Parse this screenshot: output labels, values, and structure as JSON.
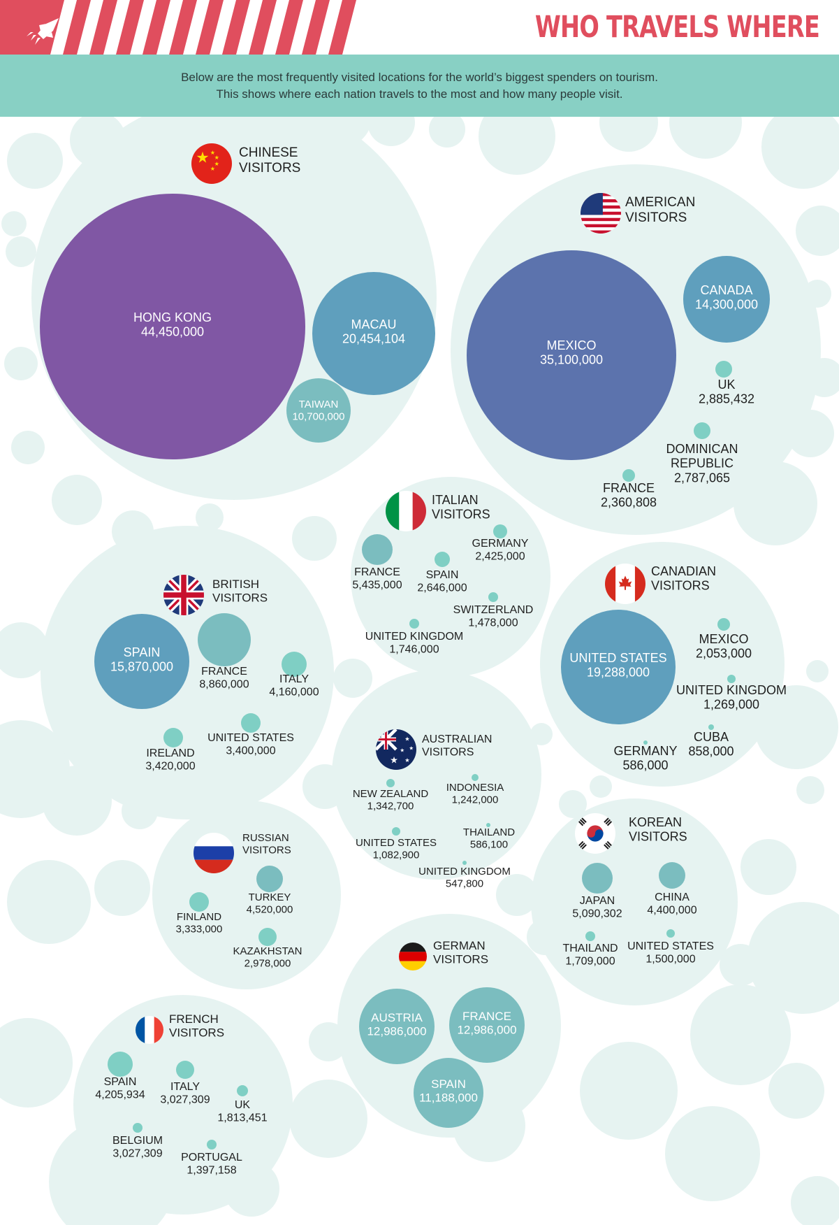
{
  "header": {
    "title": "WHO TRAVELS WHERE",
    "stripe_color": "#e04e5e",
    "logo_icon": "rocket-icon"
  },
  "intro": {
    "line1": "Below are the most frequently visited locations for the world’s biggest spenders on tourism.",
    "line2": "This shows where each nation travels to the most and how many people visit."
  },
  "colors": {
    "intro_bar": "#88d0c4",
    "group_background": "#e6f3f1",
    "hong_kong_bubble": "#8057a4",
    "mexico_bubble": "#5c73ad",
    "blue_bubbles": "#5f9fbd",
    "teal_bubbles": "#7bbdbf",
    "small_dots": "#7fcfc4"
  },
  "groups": [
    {
      "id": "chinese",
      "flag": "china-flag",
      "label": [
        "CHINESE",
        "VISITORS"
      ],
      "destinations": [
        {
          "name": "HONG KONG",
          "visitors": "44,450,000"
        },
        {
          "name": "MACAU",
          "visitors": "20,454,104"
        },
        {
          "name": "TAIWAN",
          "visitors": "10,700,000"
        }
      ]
    },
    {
      "id": "american",
      "flag": "usa-flag",
      "label": [
        "AMERICAN",
        "VISITORS"
      ],
      "destinations": [
        {
          "name": "MEXICO",
          "visitors": "35,100,000"
        },
        {
          "name": "CANADA",
          "visitors": "14,300,000"
        },
        {
          "name": "UK",
          "visitors": "2,885,432"
        },
        {
          "name": "DOMINICAN REPUBLIC",
          "visitors": "2,787,065"
        },
        {
          "name": "FRANCE",
          "visitors": "2,360,808"
        }
      ]
    },
    {
      "id": "italian",
      "flag": "italy-flag",
      "label": [
        "ITALIAN",
        "VISITORS"
      ],
      "destinations": [
        {
          "name": "FRANCE",
          "visitors": "5,435,000"
        },
        {
          "name": "GERMANY",
          "visitors": "2,425,000"
        },
        {
          "name": "SPAIN",
          "visitors": "2,646,000"
        },
        {
          "name": "SWITZERLAND",
          "visitors": "1,478,000"
        },
        {
          "name": "UNITED KINGDOM",
          "visitors": "1,746,000"
        }
      ]
    },
    {
      "id": "british",
      "flag": "uk-flag",
      "label": [
        "BRITISH",
        "VISITORS"
      ],
      "destinations": [
        {
          "name": "SPAIN",
          "visitors": "15,870,000"
        },
        {
          "name": "FRANCE",
          "visitors": "8,860,000"
        },
        {
          "name": "ITALY",
          "visitors": "4,160,000"
        },
        {
          "name": "UNITED STATES",
          "visitors": "3,400,000"
        },
        {
          "name": "IRELAND",
          "visitors": "3,420,000"
        }
      ]
    },
    {
      "id": "canadian",
      "flag": "canada-flag",
      "label": [
        "CANADIAN",
        "VISITORS"
      ],
      "destinations": [
        {
          "name": "UNITED STATES",
          "visitors": "19,288,000"
        },
        {
          "name": "MEXICO",
          "visitors": "2,053,000"
        },
        {
          "name": "UNITED KINGDOM",
          "visitors": "1,269,000"
        },
        {
          "name": "CUBA",
          "visitors": "858,000"
        },
        {
          "name": "GERMANY",
          "visitors": "586,000"
        }
      ]
    },
    {
      "id": "australian",
      "flag": "australia-flag",
      "label": [
        "AUSTRALIAN",
        "VISITORS"
      ],
      "destinations": [
        {
          "name": "NEW ZEALAND",
          "visitors": "1,342,700"
        },
        {
          "name": "INDONESIA",
          "visitors": "1,242,000"
        },
        {
          "name": "UNITED STATES",
          "visitors": "1,082,900"
        },
        {
          "name": "THAILAND",
          "visitors": "586,100"
        },
        {
          "name": "UNITED KINGDOM",
          "visitors": "547,800"
        }
      ]
    },
    {
      "id": "russian",
      "flag": "russia-flag",
      "label": [
        "RUSSIAN",
        "VISITORS"
      ],
      "destinations": [
        {
          "name": "TURKEY",
          "visitors": "4,520,000"
        },
        {
          "name": "FINLAND",
          "visitors": "3,333,000"
        },
        {
          "name": "KAZAKHSTAN",
          "visitors": "2,978,000"
        }
      ]
    },
    {
      "id": "korean",
      "flag": "south-korea-flag",
      "label": [
        "KOREAN",
        "VISITORS"
      ],
      "destinations": [
        {
          "name": "JAPAN",
          "visitors": "5,090,302"
        },
        {
          "name": "CHINA",
          "visitors": "4,400,000"
        },
        {
          "name": "THAILAND",
          "visitors": "1,709,000"
        },
        {
          "name": "UNITED STATES",
          "visitors": "1,500,000"
        }
      ]
    },
    {
      "id": "german",
      "flag": "germany-flag",
      "label": [
        "GERMAN",
        "VISITORS"
      ],
      "destinations": [
        {
          "name": "AUSTRIA",
          "visitors": "12,986,000"
        },
        {
          "name": "FRANCE",
          "visitors": "12,986,000"
        },
        {
          "name": "SPAIN",
          "visitors": "11,188,000"
        }
      ]
    },
    {
      "id": "french",
      "flag": "france-flag",
      "label": [
        "FRENCH",
        "VISITORS"
      ],
      "destinations": [
        {
          "name": "SPAIN",
          "visitors": "4,205,934"
        },
        {
          "name": "ITALY",
          "visitors": "3,027,309"
        },
        {
          "name": "UK",
          "visitors": "1,813,451"
        },
        {
          "name": "BELGIUM",
          "visitors": "3,027,309"
        },
        {
          "name": "PORTUGAL",
          "visitors": "1,397,158"
        }
      ]
    }
  ]
}
